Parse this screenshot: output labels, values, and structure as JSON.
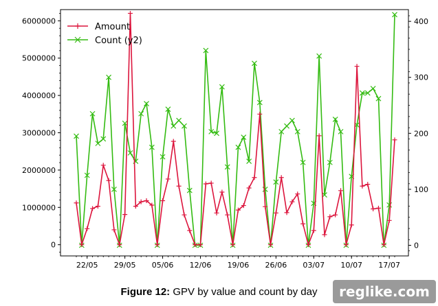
{
  "chart_data": {
    "type": "line",
    "x_tick_labels": [
      "22/05",
      "29/05",
      "05/06",
      "12/06",
      "19/06",
      "26/06",
      "03/07",
      "10/07",
      "17/07"
    ],
    "y_ticks": [
      "0",
      "1000000",
      "2000000",
      "3000000",
      "4000000",
      "5000000",
      "6000000"
    ],
    "y2_ticks": [
      "0",
      "100",
      "200",
      "300",
      "400"
    ],
    "ylim": [
      -300000,
      6300000
    ],
    "y2lim": [
      -19,
      421
    ],
    "legend_position": "top-left",
    "series": [
      {
        "name": "Amount",
        "axis": "y",
        "color": "#dc143c",
        "marker": "plus",
        "values": [
          1120000,
          0,
          430000,
          970000,
          1030000,
          2130000,
          1720000,
          400000,
          0,
          810000,
          6200000,
          1030000,
          1150000,
          1180000,
          1060000,
          0,
          1180000,
          1760000,
          2770000,
          1570000,
          800000,
          380000,
          0,
          0,
          1630000,
          1650000,
          850000,
          1410000,
          800000,
          0,
          930000,
          1050000,
          1520000,
          1800000,
          3500000,
          1020000,
          0,
          850000,
          1800000,
          860000,
          1150000,
          1360000,
          560000,
          0,
          380000,
          2920000,
          270000,
          750000,
          800000,
          1450000,
          0,
          530000,
          4780000,
          1570000,
          1620000,
          960000,
          980000,
          0,
          650000,
          2810000
        ]
      },
      {
        "name": "Count (y2)",
        "axis": "y2",
        "color": "#33bb11",
        "marker": "x",
        "values": [
          195,
          0,
          125,
          235,
          182,
          190,
          300,
          100,
          0,
          218,
          165,
          150,
          235,
          253,
          175,
          0,
          158,
          243,
          213,
          223,
          213,
          98,
          0,
          0,
          348,
          203,
          200,
          283,
          140,
          0,
          175,
          193,
          150,
          325,
          255,
          100,
          0,
          113,
          203,
          213,
          223,
          203,
          148,
          0,
          75,
          338,
          90,
          148,
          225,
          203,
          0,
          123,
          215,
          272,
          272,
          280,
          262,
          0,
          72,
          412
        ]
      }
    ]
  },
  "caption": {
    "prefix": "Figure 12:",
    "text": " GPV by value and count by day"
  },
  "watermark": "reglike.com"
}
